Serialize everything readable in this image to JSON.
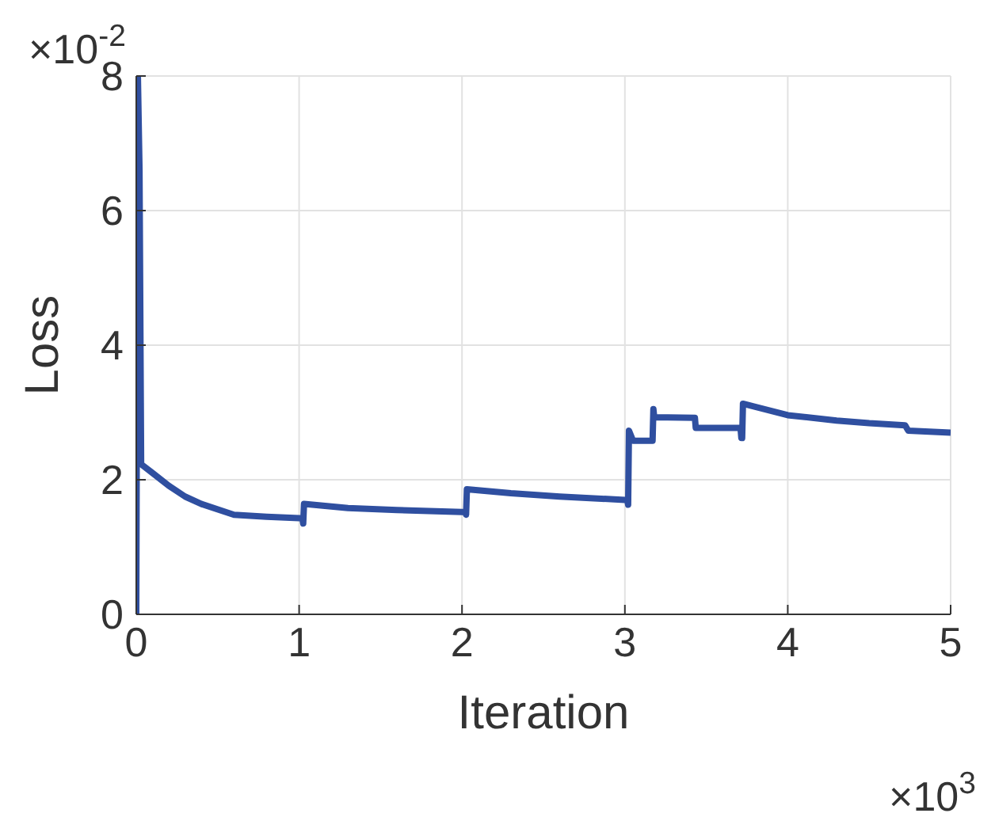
{
  "chart_data": {
    "type": "line",
    "xlabel": "Iteration",
    "ylabel": "Loss",
    "annotations": [
      "×10$^{-2}$",
      "×10$^{3}$"
    ],
    "x": [
      0,
      0.01,
      0.02,
      0.03,
      0.1,
      0.2,
      0.3,
      0.4,
      0.6,
      0.8,
      1,
      1.02,
      1.025,
      1.03,
      1.3,
      1.6,
      2,
      2.02,
      2.025,
      2.03,
      2.3,
      2.6,
      3,
      3.015,
      3.02,
      3.025,
      3.05,
      3.165,
      3.17,
      3.175,
      3.18,
      3.43,
      3.435,
      3.71,
      3.715,
      3.72,
      3.725,
      4,
      4.3,
      4.5,
      4.72,
      4.74,
      5
    ],
    "series": [
      {
        "color": "#2f4fa0",
        "values": [
          0,
          8,
          6.6,
          2.23,
          2.1,
          1.91,
          1.75,
          1.64,
          1.48,
          1.45,
          1.43,
          1.42,
          1.35,
          1.64,
          1.58,
          1.55,
          1.52,
          1.52,
          1.48,
          1.86,
          1.8,
          1.75,
          1.7,
          1.7,
          1.63,
          2.73,
          2.58,
          2.58,
          2.58,
          3.05,
          2.93,
          2.92,
          2.77,
          2.77,
          2.62,
          2.62,
          3.13,
          2.96,
          2.88,
          2.84,
          2.81,
          2.73,
          2.7
        ]
      }
    ],
    "xlim": [
      0,
      5
    ],
    "xticks": [
      0,
      1,
      2,
      3,
      4,
      5
    ],
    "ylim": [
      0,
      8
    ],
    "yticks": [
      0,
      2,
      4,
      6,
      8
    ],
    "grid": true,
    "marker": "none",
    "line_style": "solid",
    "legend": false
  }
}
